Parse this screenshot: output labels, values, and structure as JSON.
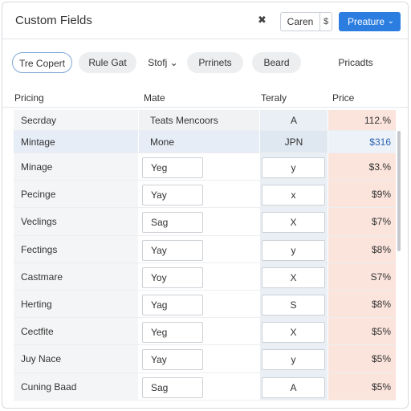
{
  "window": {
    "title": "Custom Fields",
    "close_symbol": "✖",
    "cancel_label": "Caren",
    "cancel_symbol": "$",
    "primary_label": "Preature",
    "primary_chevron": "⌄"
  },
  "filters": [
    {
      "label": "Tre Copert",
      "style": "outline"
    },
    {
      "label": "Rule Gat",
      "style": "gray"
    },
    {
      "label": "Stofj ⌄",
      "style": "plain"
    },
    {
      "label": "Prrinets",
      "style": "gray"
    },
    {
      "label": "Beard",
      "style": "gray"
    },
    {
      "label": "Pricadts",
      "style": "plain"
    }
  ],
  "columns": [
    "Pricing",
    "Mate",
    "Teraly",
    "Price"
  ],
  "rows": [
    {
      "name": "Secrday",
      "mate": "Teats Mencoors",
      "totaly": "A",
      "price": "112.%",
      "kind": "top"
    },
    {
      "name": "Mintage",
      "mate": "Mone",
      "totaly": "JPN",
      "price": "$316",
      "kind": "hl"
    },
    {
      "name": "Minage",
      "mate": "Yeg",
      "totaly": "y",
      "price": "$3.%",
      "kind": "input"
    },
    {
      "name": "Pecinge",
      "mate": "Yay",
      "totaly": "х",
      "price": "$9%",
      "kind": "input"
    },
    {
      "name": "Veclings",
      "mate": "Sag",
      "totaly": "X",
      "price": "$7%",
      "kind": "input"
    },
    {
      "name": "Fectings",
      "mate": "Yay",
      "totaly": "у",
      "price": "$8%",
      "kind": "input"
    },
    {
      "name": "Castmare",
      "mate": "Yoy",
      "totaly": "X",
      "price": "S7%",
      "kind": "input"
    },
    {
      "name": "Herting",
      "mate": "Yag",
      "totaly": "S",
      "price": "$8%",
      "kind": "input"
    },
    {
      "name": "Cectfite",
      "mate": "Yeg",
      "totaly": "X",
      "price": "$5%",
      "kind": "input"
    },
    {
      "name": "Juy Nace",
      "mate": "Yay",
      "totaly": "у",
      "price": "$5%",
      "kind": "input"
    },
    {
      "name": "Cuning Baad",
      "mate": "Sag",
      "totaly": "A",
      "price": "$5%",
      "kind": "input"
    }
  ]
}
